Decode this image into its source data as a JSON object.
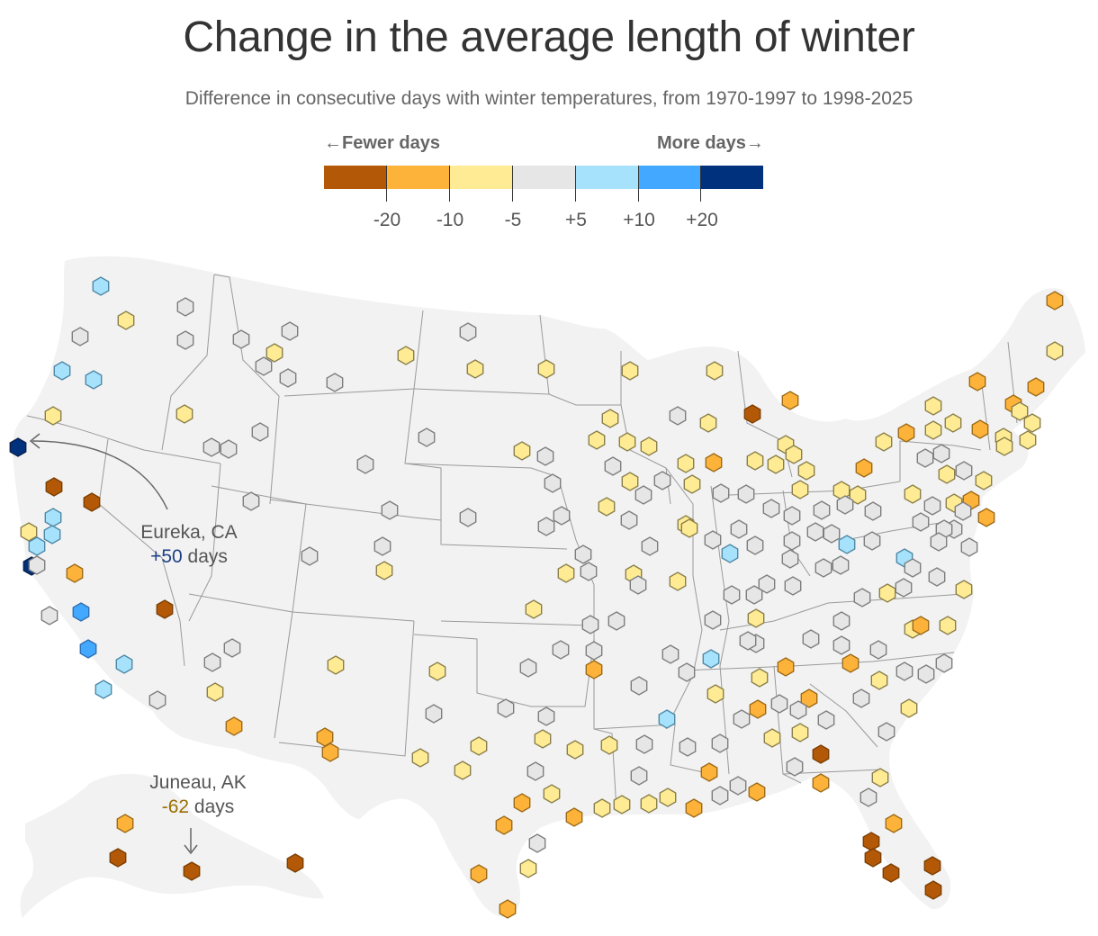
{
  "title": "Change in the average length of winter",
  "subtitle": "Difference in consecutive days with winter temperatures, from 1970‑1997 to 1998‑2025",
  "legend": {
    "fewer_label": "←Fewer days",
    "more_label": "More days→",
    "colors": [
      "#b35806",
      "#fdb33a",
      "#feeb94",
      "#e6e6e6",
      "#a6e2fb",
      "#43a8ff",
      "#00317d"
    ],
    "ticks": [
      "-20",
      "-10",
      "-5",
      "+5",
      "+10",
      "+20"
    ]
  },
  "annotations": {
    "eureka": {
      "place": "Eureka, CA",
      "value": "+50",
      "unit": "days"
    },
    "juneau": {
      "place": "Juneau, AK",
      "value": "-62",
      "unit": "days"
    }
  },
  "stations": "112,318,4|140,356,2|206,341,3|89,374,3|206,378,3|69,412,4|104,422,4|268,377,3|322,368,3|305,392,2|293,407,3|320,420,3|372,425,3|451,395,2|520,369,3|528,410,2|607,410,2|700,412,2|794,412,2|59,462,2|205,460,2|289,480,3|235,497,3|254,499,3|474,486,3|406,516,3|580,501,2|606,507,3|678,465,2|663,489,2|697,491,2|721,496,2|681,518,3|700,535,2|715,550,3|736,534,3|753,462,3|787,470,2|878,445,1|1037,451,2|1086,424,1|1151,430,1|1126,449,1|1133,457,2|1147,470,2|1115,486,2|1116,496,2|1142,489,2|1172,334,1|1172,390,2|60,541,0|102,558,0|59,575,4|58,594,4|32,591,2|41,607,4|35,629,6|41,628,3|83,637,1|279,557,3|433,567,3|520,575,3|614,537,3|624,573,3|607,585,3|674,563,2|699,578,3|722,607,3|762,583,2|766,587,2|792,600,3|762,515,2|769,538,2|793,514,1|801,548,3|836,460,0|839,512,2|862,516,2|873,494,2|882,505,2|896,523,2|889,544,2|829,549,3|857,565,3|880,573,3|913,567,3|935,545,2|953,550,2|939,561,3|970,568,3|960,520,1|982,491,2|1007,481,1|1037,478,2|1059,470,2|1089,477,1|1046,504,3|1028,509,3|1052,527,2|1071,523,3|1014,549,2|1036,562,3|1060,559,2|1079,556,1|1093,534,2|1096,575,1|1070,568,3|1060,588,3|1049,588,3|1023,580,3|1043,602,3|1077,608,3|821,588,3|839,606,3|811,615,4|880,601,3|906,591,3|924,593,3|941,605,4|969,601,3|1005,620,4|1014,631,3|986,659,2|1004,653,3|1041,641,3|1071,655,2|958,664,3|934,628,3|915,631,3|878,621,3|852,649,3|881,651,3|813,661,3|838,661,3|344,618,3|425,607,3|427,634,2|629,637,2|648,616,3|654,635,3|704,638,2|709,650,3|753,646,2|593,677,2|656,694,3|685,690,3|792,689,3|840,687,2|935,690,3|1014,699,2|1023,695,1|1053,695,2|901,710,3|935,717,3|976,722,3|945,737,1|1049,737,3|1029,749,3|1005,746,3|977,756,2|957,776,3|1010,787,2|985,813,3|55,684,3|90,680,5|183,677,0|98,721,5|138,738,4|115,766,4|258,720,3|236,736,3|239,769,2|175,778,3|260,807,1|373,739,2|486,746,2|482,793,3|587,742,3|623,722,3|660,723,3|660,744,1|745,727,3|790,732,4|763,747,3|710,762,3|840,715,3|831,712,3|873,741,1|844,753,2|866,782,3|899,776,1|795,771,2|824,799,3|842,788,1|887,789,3|918,800,3|361,819,1|367,836,1|467,842,2|514,856,2|532,829,2|562,787,3|607,796,3|603,821,2|639,833,2|677,828,2|716,827,3|741,799,4|764,830,3|800,826,3|858,820,2|889,814,2|883,852,3|912,838,0|912,870,1|978,864,2|965,886,3|993,915,1|968,935,0|970,953,0|990,970,0|1036,962,0|1037,989,0|710,862,3|788,858,1|800,884,3|820,873,3|841,880,1|771,898,1|742,886,2|721,893,2|691,894,2|669,898,2|638,908,1|613,882,2|580,892,1|595,857,3|560,917,1|597,937,3|587,965,2|532,971,1|564,1010,1|139,915,1|131,953,0|213,968,0|328,959,0|20,497,6",
  "eureka_index": 250,
  "juneau_index": 249
}
